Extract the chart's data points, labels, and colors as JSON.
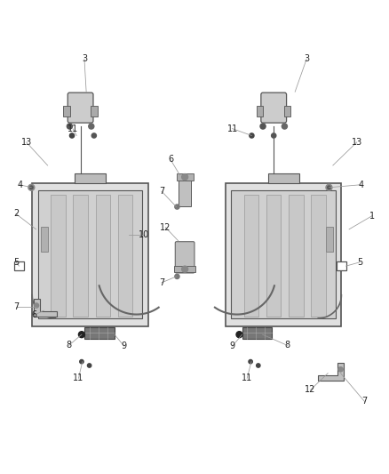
{
  "bg_color": "#ffffff",
  "line_color": "#555555",
  "dark_color": "#222222",
  "fig_width": 4.38,
  "fig_height": 5.33,
  "dpi": 100
}
